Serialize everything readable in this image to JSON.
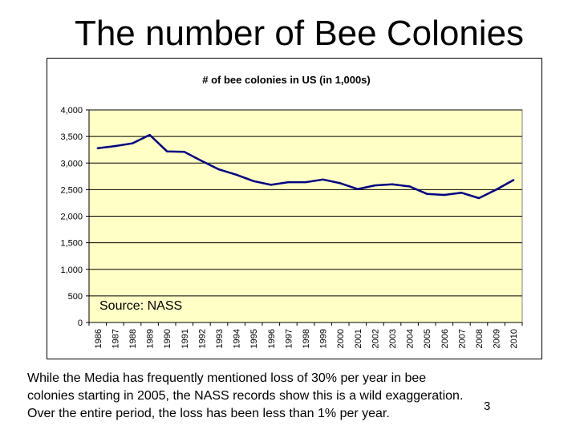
{
  "slide": {
    "title": "The number of Bee Colonies",
    "source": "Source: NASS",
    "caption_lines": [
      "While the Media has frequently mentioned loss of 30% per year in bee",
      "colonies starting in 2005, the NASS records show this is a wild exaggeration.",
      "Over the entire period, the loss has been less than 1% per year."
    ],
    "page_number": "3"
  },
  "chart_data": {
    "type": "line",
    "title": "# of bee colonies in US (in 1,000s)",
    "xlabel": "",
    "ylabel": "",
    "categories": [
      "1986",
      "1987",
      "1988",
      "1989",
      "1990",
      "1991",
      "1992",
      "1993",
      "1994",
      "1995",
      "1996",
      "1997",
      "1998",
      "1999",
      "2000",
      "2001",
      "2002",
      "2003",
      "2004",
      "2005",
      "2006",
      "2007",
      "2008",
      "2009",
      "2010"
    ],
    "series": [
      {
        "values": [
          3280,
          3320,
          3370,
          3530,
          3220,
          3210,
          3040,
          2880,
          2780,
          2660,
          2590,
          2640,
          2640,
          2690,
          2620,
          2510,
          2580,
          2600,
          2560,
          2420,
          2400,
          2440,
          2340,
          2500,
          2680
        ],
        "color": "#000080"
      }
    ],
    "yticks": [
      "0",
      "500",
      "1,000",
      "1,500",
      "2,000",
      "2,500",
      "3,000",
      "3,500",
      "4,000"
    ],
    "ylim": [
      0,
      4000
    ],
    "grid": true,
    "plot_background": "#ffffc6",
    "legend": "none"
  }
}
